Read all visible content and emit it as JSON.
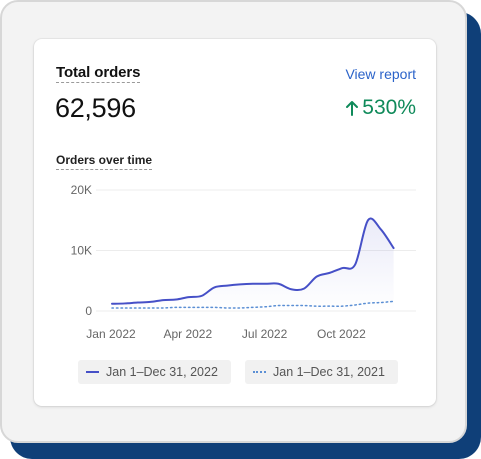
{
  "card": {
    "title": "Total orders",
    "view_report_label": "View report",
    "total_value": "62,596",
    "change_percent": "530%",
    "change_direction": "up",
    "change_color": "#0f8a5a"
  },
  "chart_section": {
    "subtitle": "Orders over time"
  },
  "chart_data": {
    "type": "line",
    "xlabel": "",
    "ylabel": "",
    "ylim": [
      0,
      20000
    ],
    "y_ticks": [
      "0",
      "10K",
      "20K"
    ],
    "y_tick_values": [
      0,
      10000,
      20000
    ],
    "x_tick_labels": [
      "Jan 2022",
      "Apr 2022",
      "Jul 2022",
      "Oct 2022"
    ],
    "x_tick_positions": [
      0,
      3,
      6,
      9
    ],
    "grid": true,
    "legend_placement": "bottom",
    "x": [
      0,
      0.5,
      1,
      1.5,
      2,
      2.5,
      3,
      3.5,
      4,
      4.5,
      5,
      5.5,
      6,
      6.5,
      7,
      7.5,
      8,
      8.5,
      9,
      9.5,
      10,
      10.5,
      11
    ],
    "series": [
      {
        "name": "Jan 1–Dec 31, 2022",
        "color": "#4650c7",
        "style": "solid",
        "values": [
          1200,
          1250,
          1400,
          1500,
          1800,
          1900,
          2300,
          2500,
          3900,
          4200,
          4400,
          4500,
          4500,
          4500,
          3600,
          3700,
          5700,
          6300,
          7100,
          7700,
          15000,
          13500,
          10400
        ]
      },
      {
        "name": "Jan 1–Dec 31, 2021",
        "color": "#5b8fd4",
        "style": "dotted",
        "values": [
          500,
          500,
          500,
          500,
          500,
          600,
          600,
          600,
          600,
          500,
          500,
          600,
          700,
          900,
          900,
          900,
          800,
          800,
          800,
          1000,
          1300,
          1400,
          1600
        ]
      }
    ]
  }
}
